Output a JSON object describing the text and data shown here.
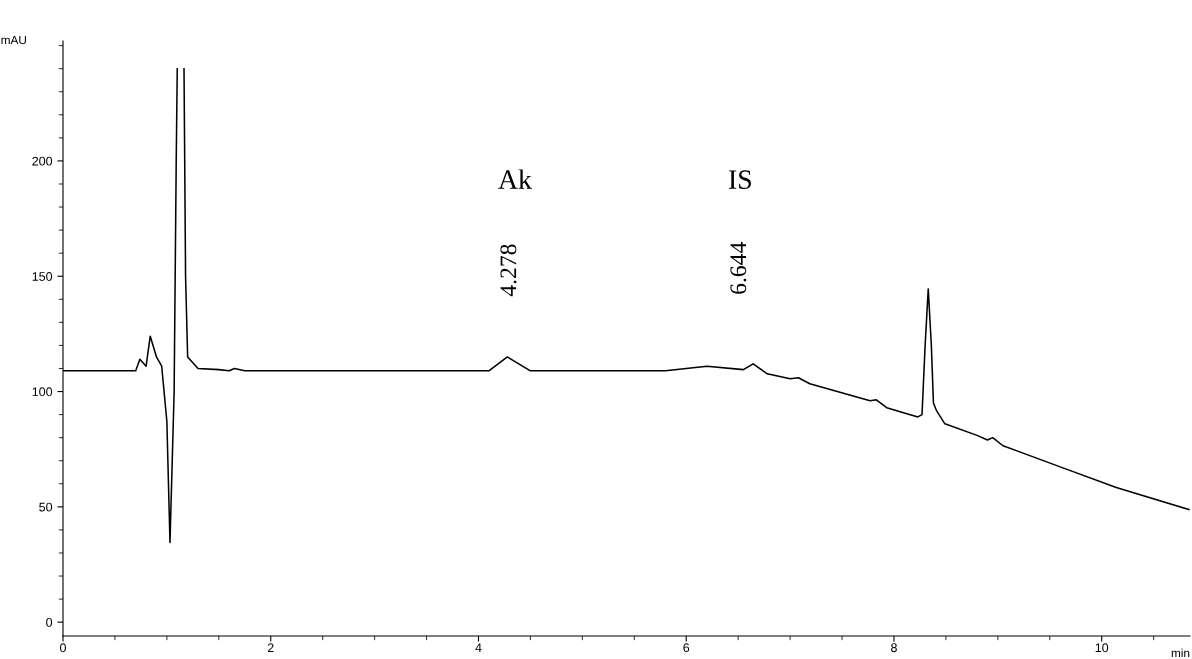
{
  "chart_data": {
    "type": "line",
    "xlabel": "min",
    "ylabel": "mAU",
    "xlim": [
      0,
      10.85
    ],
    "ylim": [
      -6,
      252
    ],
    "xticks": [
      0,
      2,
      4,
      6,
      8,
      10
    ],
    "yticks": [
      0,
      50,
      100,
      150,
      200
    ],
    "grid": false,
    "legend": false,
    "marker": "none",
    "line_style": "solid",
    "series": [
      {
        "color": "#000000",
        "x": [
          0,
          0.7,
          0.74,
          0.8,
          0.84,
          0.9,
          0.95,
          1.0,
          1.03,
          1.07,
          1.09,
          1.1,
          1.13,
          1.165,
          1.18,
          1.2,
          1.3,
          1.5,
          1.6,
          1.65,
          1.75,
          2,
          3,
          4.1,
          4.278,
          4.5,
          5,
          5.8,
          6.2,
          6.55,
          6.644,
          6.78,
          7.0,
          7.08,
          7.19,
          7.77,
          7.83,
          7.93,
          8.23,
          8.27,
          8.3,
          8.33,
          8.36,
          8.38,
          8.41,
          8.49,
          8.8,
          8.9,
          8.95,
          9.05,
          9.62,
          10.14,
          10.84
        ],
        "values": [
          109,
          109,
          114,
          111,
          124,
          115,
          111,
          87,
          34.5,
          100,
          200,
          240,
          null,
          240,
          150,
          115,
          110,
          109.5,
          109,
          110,
          109,
          109,
          109,
          109,
          115,
          109,
          109,
          109,
          111,
          109.5,
          112,
          107.7,
          105.5,
          106,
          103.4,
          96,
          96.4,
          93,
          89,
          90,
          120,
          144.5,
          120,
          95,
          91.7,
          86,
          81,
          79,
          80,
          76.5,
          67,
          58.4,
          48.8
        ]
      }
    ],
    "annotations": [
      "Ak",
      "4.278",
      "IS",
      "6.644"
    ]
  }
}
